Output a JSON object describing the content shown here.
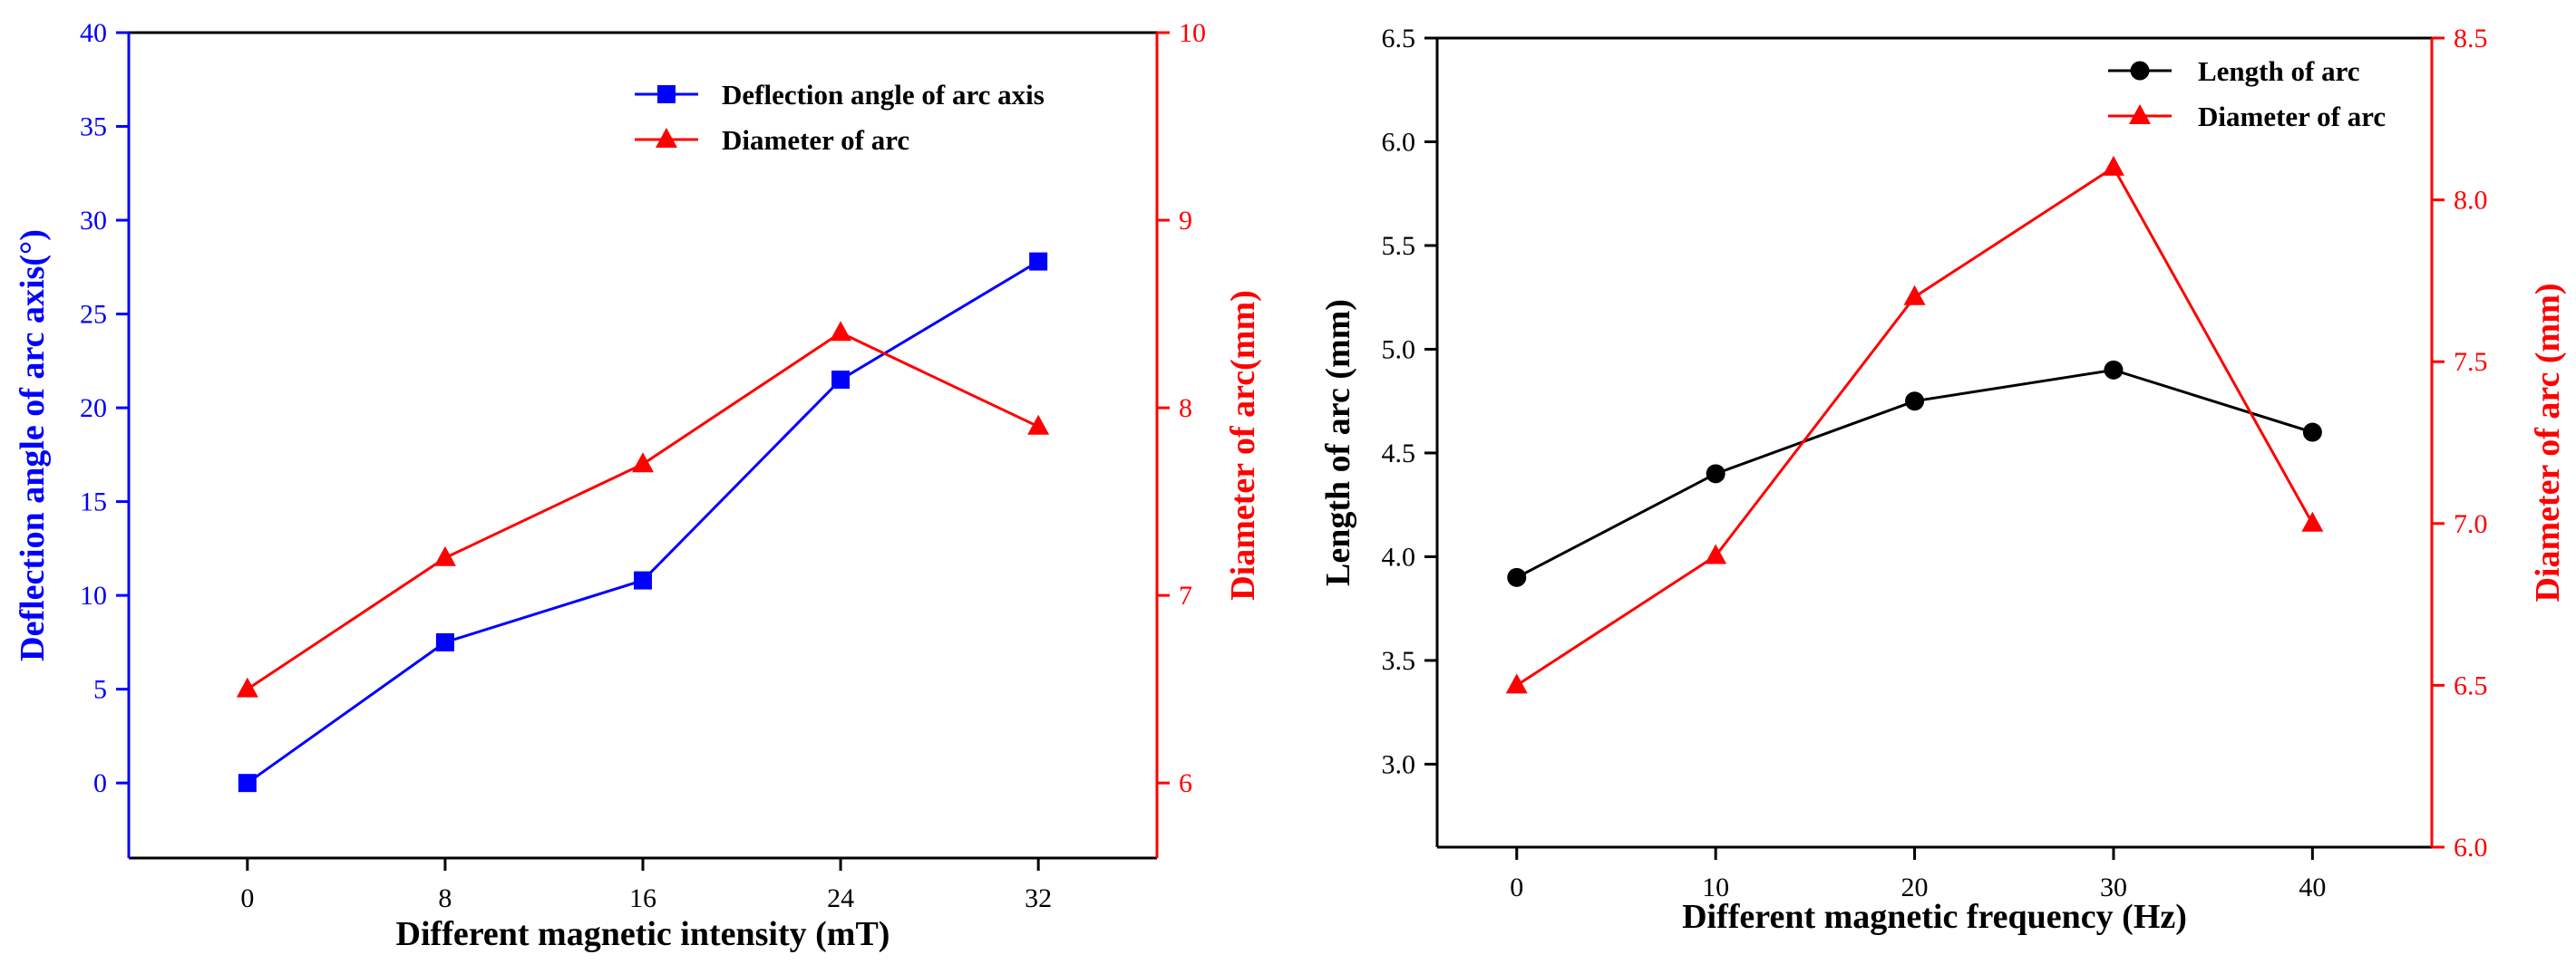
{
  "chart_data": [
    {
      "type": "line",
      "x": [
        0,
        8,
        16,
        24,
        32
      ],
      "xlabel": "Different magnetic intensity (mT)",
      "xticks": [
        "0",
        "8",
        "16",
        "24",
        "32"
      ],
      "xlim": [
        -4.8,
        36.8
      ],
      "left_axis": {
        "label": "Deflection angle of arc axis(°)",
        "lim": [
          -4,
          40
        ],
        "ticks": [
          "0",
          "5",
          "10",
          "15",
          "20",
          "25",
          "30",
          "35",
          "40"
        ],
        "color": "#0000ff"
      },
      "right_axis": {
        "label": "Diameter of arc(mm)",
        "lim": [
          5.6,
          10
        ],
        "ticks": [
          "6",
          "7",
          "8",
          "9",
          "10"
        ],
        "color": "#ff0000"
      },
      "series": [
        {
          "name": "Deflection angle of arc axis",
          "axis": "left",
          "marker": "square",
          "color": "#0000ff",
          "values": [
            0,
            7.5,
            10.8,
            21.5,
            27.8
          ]
        },
        {
          "name": "Diameter of arc",
          "axis": "right",
          "marker": "triangle",
          "color": "#ff0000",
          "values": [
            6.5,
            7.2,
            7.7,
            8.4,
            7.9
          ]
        }
      ],
      "legend": "top-right",
      "grid": false
    },
    {
      "type": "line",
      "x": [
        0,
        10,
        20,
        30,
        40
      ],
      "xlabel": "Different magnetic frequency (Hz)",
      "xticks": [
        "0",
        "10",
        "20",
        "30",
        "40"
      ],
      "xlim": [
        -4,
        46
      ],
      "left_axis": {
        "label": "Length of arc (mm)",
        "lim": [
          2.6,
          6.5
        ],
        "ticks": [
          "3.0",
          "3.5",
          "4.0",
          "4.5",
          "5.0",
          "5.5",
          "6.0",
          "6.5"
        ],
        "color": "#000000"
      },
      "right_axis": {
        "label": "Diameter of arc (mm)",
        "lim": [
          6.0,
          8.5
        ],
        "ticks": [
          "6.0",
          "6.5",
          "7.0",
          "7.5",
          "8.0",
          "8.5"
        ],
        "color": "#ff0000"
      },
      "series": [
        {
          "name": "Length of arc",
          "axis": "left",
          "marker": "circle",
          "color": "#000000",
          "values": [
            3.9,
            4.4,
            4.75,
            4.9,
            4.6
          ]
        },
        {
          "name": "Diameter of arc",
          "axis": "right",
          "marker": "triangle",
          "color": "#ff0000",
          "values": [
            6.5,
            6.9,
            7.7,
            8.1,
            7.0
          ]
        }
      ],
      "legend": "top-right",
      "grid": false
    }
  ]
}
